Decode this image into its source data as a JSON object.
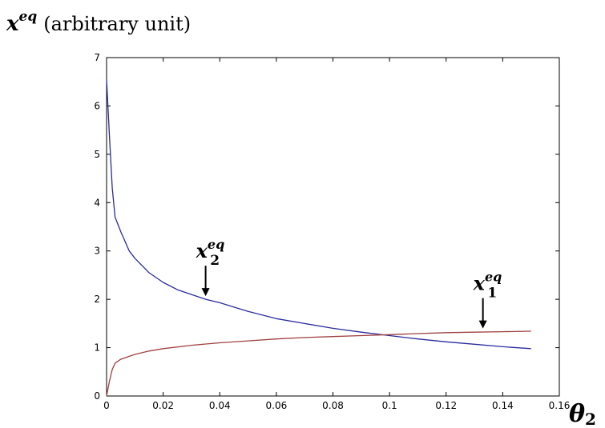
{
  "chart_data": {
    "type": "line",
    "ylabel": {
      "symbol": "x",
      "sup": "eq",
      "rest": "(arbitrary unit)"
    },
    "xlabel": {
      "symbol": "θ",
      "sub": "2"
    },
    "xlim": [
      0,
      0.16
    ],
    "ylim": [
      0,
      7
    ],
    "xticks": [
      "0",
      "0.02",
      "0.04",
      "0.06",
      "0.08",
      "0.1",
      "0.12",
      "0.14",
      "0.16"
    ],
    "yticks": [
      "0",
      "1",
      "2",
      "3",
      "4",
      "5",
      "6",
      "7"
    ],
    "xtick_values": [
      0,
      0.02,
      0.04,
      0.06,
      0.08,
      0.1,
      0.12,
      0.14,
      0.16
    ],
    "ytick_values": [
      0,
      1,
      2,
      3,
      4,
      5,
      6,
      7
    ],
    "grid": false,
    "series": [
      {
        "color": "#2b2b9e",
        "x": [
          0,
          0.001,
          0.002,
          0.003,
          0.005,
          0.008,
          0.01,
          0.015,
          0.02,
          0.025,
          0.03,
          0.035,
          0.04,
          0.05,
          0.06,
          0.07,
          0.08,
          0.09,
          0.1,
          0.11,
          0.12,
          0.13,
          0.14,
          0.15
        ],
        "y": [
          6.55,
          5.4,
          4.3,
          3.7,
          3.4,
          3.0,
          2.85,
          2.55,
          2.35,
          2.2,
          2.1,
          2.0,
          1.93,
          1.75,
          1.6,
          1.5,
          1.4,
          1.32,
          1.25,
          1.18,
          1.12,
          1.07,
          1.02,
          0.98
        ]
      },
      {
        "color": "#a04040",
        "x": [
          0,
          0.001,
          0.002,
          0.003,
          0.005,
          0.008,
          0.01,
          0.015,
          0.02,
          0.03,
          0.04,
          0.05,
          0.06,
          0.07,
          0.08,
          0.09,
          0.1,
          0.11,
          0.12,
          0.13,
          0.14,
          0.15
        ],
        "y": [
          0,
          0.3,
          0.55,
          0.68,
          0.76,
          0.82,
          0.86,
          0.93,
          0.98,
          1.05,
          1.1,
          1.14,
          1.18,
          1.21,
          1.23,
          1.25,
          1.27,
          1.29,
          1.31,
          1.32,
          1.33,
          1.34
        ]
      }
    ],
    "annotations": [
      {
        "symbol": "x",
        "sup": "eq",
        "sub": "2",
        "arrow_to": [
          0.035,
          2.0
        ]
      },
      {
        "symbol": "x",
        "sup": "eq",
        "sub": "1",
        "arrow_to": [
          0.133,
          1.33
        ]
      }
    ]
  }
}
